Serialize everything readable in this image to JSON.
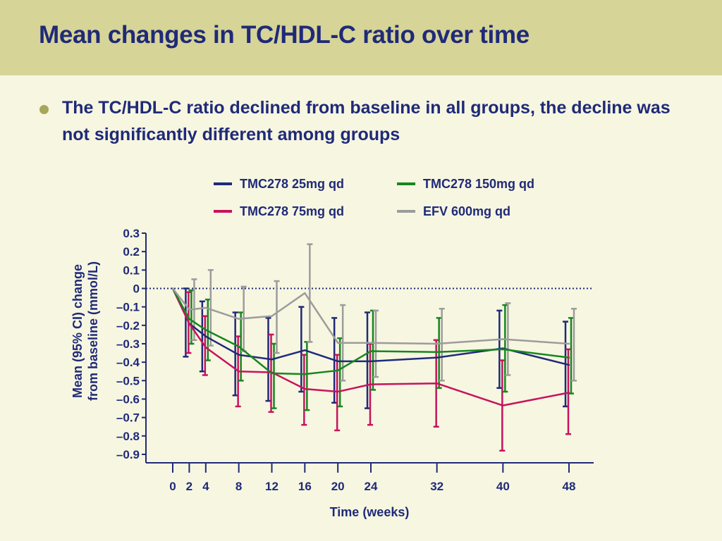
{
  "slide": {
    "title": "Mean changes in TC/HDL-C ratio over time",
    "bullet": "The TC/HDL-C ratio declined from baseline in all groups, the decline was not significantly different among groups"
  },
  "colors": {
    "title_bar": "#d7d497",
    "background": "#f7f6e1",
    "text": "#1f2a78",
    "bullet": "#a8a55c"
  },
  "chart_data": {
    "type": "line",
    "xlabel": "Time (weeks)",
    "ylabel": "Mean (95% CI) change from baseline (mmol/L)",
    "ylabel_lines": [
      "Mean (95% CI) change",
      "from baseline (mmol/L)"
    ],
    "x": [
      0,
      2,
      4,
      8,
      12,
      16,
      20,
      24,
      32,
      40,
      48
    ],
    "x_tick_labels": [
      "0",
      "2",
      "4",
      "8",
      "12",
      "16",
      "20",
      "24",
      "32",
      "40",
      "48"
    ],
    "ylim": [
      -0.9,
      0.3
    ],
    "y_ticks": [
      0.3,
      0.2,
      0.1,
      0,
      -0.1,
      -0.2,
      -0.3,
      -0.4,
      -0.5,
      -0.6,
      -0.7,
      -0.8,
      -0.9
    ],
    "y_tick_labels": [
      "0.3",
      "0.2",
      "0.1",
      "0",
      "–0.1",
      "–0.2",
      "–0.3",
      "–0.4",
      "–0.5",
      "–0.6",
      "–0.7",
      "–0.8",
      "–0.9"
    ],
    "reference_line": 0,
    "legend_position": "top",
    "series": [
      {
        "name": "TMC278 25mg qd",
        "color": "#1f2a78",
        "values": [
          0,
          -0.19,
          -0.26,
          -0.36,
          -0.385,
          -0.335,
          -0.395,
          -0.395,
          -0.375,
          -0.325,
          -0.415
        ],
        "ci_low": [
          0,
          -0.37,
          -0.45,
          -0.58,
          -0.61,
          -0.56,
          -0.62,
          -0.65,
          null,
          -0.54,
          -0.64
        ],
        "ci_high": [
          0,
          0.0,
          -0.07,
          -0.13,
          -0.16,
          -0.1,
          -0.16,
          -0.13,
          null,
          -0.12,
          -0.18
        ]
      },
      {
        "name": "TMC278 75mg qd",
        "color": "#c7135e",
        "values": [
          0,
          -0.19,
          -0.32,
          -0.45,
          -0.455,
          -0.545,
          -0.56,
          -0.52,
          -0.515,
          -0.635,
          -0.565
        ],
        "ci_low": [
          0,
          -0.35,
          -0.47,
          -0.64,
          -0.67,
          -0.74,
          -0.77,
          -0.74,
          -0.75,
          -0.88,
          -0.79
        ],
        "ci_high": [
          0,
          -0.02,
          -0.15,
          -0.26,
          -0.25,
          -0.36,
          -0.36,
          -0.3,
          -0.28,
          -0.39,
          -0.33
        ]
      },
      {
        "name": "TMC278 150mg qd",
        "color": "#17861f",
        "values": [
          0,
          -0.165,
          -0.225,
          -0.315,
          -0.46,
          -0.465,
          -0.445,
          -0.34,
          -0.345,
          -0.33,
          -0.375
        ],
        "ci_low": [
          0,
          -0.3,
          -0.39,
          -0.5,
          -0.65,
          -0.66,
          -0.64,
          -0.55,
          -0.54,
          -0.56,
          -0.57
        ],
        "ci_high": [
          0,
          -0.01,
          -0.06,
          -0.13,
          -0.3,
          -0.29,
          -0.27,
          -0.12,
          -0.16,
          -0.09,
          -0.16
        ]
      },
      {
        "name": "EFV 600mg qd",
        "color": "#9c9c9c",
        "values": [
          0,
          -0.115,
          -0.105,
          -0.165,
          -0.15,
          -0.025,
          -0.295,
          -0.295,
          -0.3,
          -0.275,
          -0.3
        ],
        "ci_low": [
          0,
          -0.28,
          -0.31,
          -0.34,
          -0.35,
          -0.29,
          -0.5,
          -0.48,
          -0.5,
          -0.47,
          -0.5
        ],
        "ci_high": [
          0,
          0.05,
          0.1,
          0.01,
          0.04,
          0.24,
          -0.09,
          -0.12,
          -0.11,
          -0.08,
          -0.11
        ]
      }
    ]
  }
}
